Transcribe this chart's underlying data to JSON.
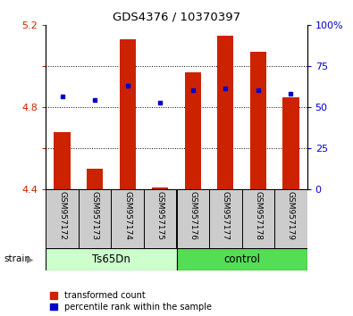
{
  "title": "GDS4376 / 10370397",
  "samples": [
    "GSM957172",
    "GSM957173",
    "GSM957174",
    "GSM957175",
    "GSM957176",
    "GSM957177",
    "GSM957178",
    "GSM957179"
  ],
  "red_values": [
    4.68,
    4.5,
    5.13,
    4.41,
    4.97,
    5.15,
    5.07,
    4.85
  ],
  "blue_values": [
    4.855,
    4.835,
    4.905,
    4.825,
    4.885,
    4.895,
    4.885,
    4.865
  ],
  "ylim_left": [
    4.4,
    5.2
  ],
  "ylim_right": [
    0,
    100
  ],
  "yticks_left": [
    4.4,
    4.6,
    4.8,
    5.0,
    5.2
  ],
  "ytick_labels_left": [
    "4.4",
    "",
    "4.8",
    "",
    "5.2"
  ],
  "yticks_right": [
    0,
    25,
    50,
    75,
    100
  ],
  "ytick_labels_right": [
    "0",
    "25",
    "50",
    "75",
    "100%"
  ],
  "bar_bottom": 4.4,
  "bar_color": "#cc2200",
  "marker_color": "#0000cc",
  "ts_color": "#ccffcc",
  "ctrl_color": "#55dd55",
  "legend_items": [
    "transformed count",
    "percentile rank within the sample"
  ]
}
